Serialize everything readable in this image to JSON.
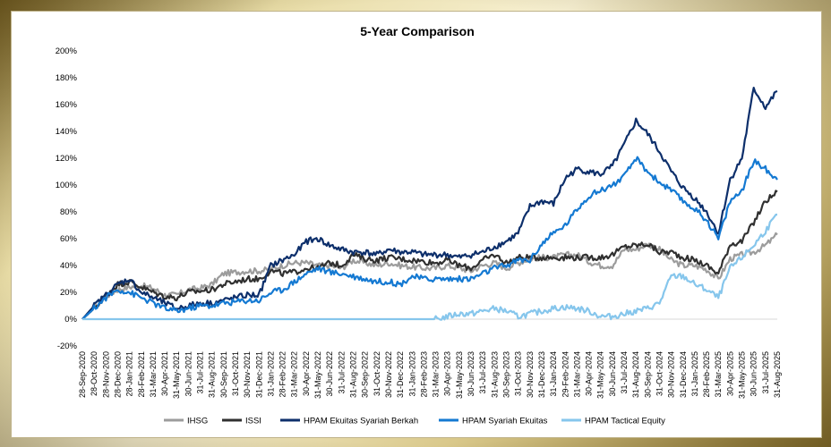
{
  "chart_data": {
    "type": "line",
    "title": "5-Year Comparison",
    "xlabel": "",
    "ylabel": "",
    "ylim": [
      -20,
      200
    ],
    "y_ticks": [
      "200%",
      "180%",
      "160%",
      "140%",
      "120%",
      "100%",
      "80%",
      "60%",
      "40%",
      "20%",
      "0%",
      "-20%"
    ],
    "x_tick_labels": [
      "28-Sep-2020",
      "28-Oct-2020",
      "28-Nov-2020",
      "28-Dec-2020",
      "28-Jan-2021",
      "28-Feb-2021",
      "31-Mar-2021",
      "30-Apr-2021",
      "31-May-2021",
      "30-Jun-2021",
      "31-Jul-2021",
      "31-Aug-2021",
      "30-Sep-2021",
      "31-Oct-2021",
      "30-Nov-2021",
      "31-Dec-2021",
      "31-Jan-2022",
      "28-Feb-2022",
      "31-Mar-2022",
      "30-Apr-2022",
      "31-May-2022",
      "30-Jun-2022",
      "31-Jul-2022",
      "31-Aug-2022",
      "30-Sep-2022",
      "31-Oct-2022",
      "30-Nov-2022",
      "31-Dec-2022",
      "31-Jan-2023",
      "28-Feb-2023",
      "31-Mar-2023",
      "30-Apr-2023",
      "31-May-2023",
      "30-Jun-2023",
      "31-Jul-2023",
      "31-Aug-2023",
      "30-Sep-2023",
      "31-Oct-2023",
      "30-Nov-2023",
      "31-Dec-2023",
      "31-Jan-2024",
      "29-Feb-2024",
      "31-Mar-2024",
      "30-Apr-2024",
      "31-May-2024",
      "30-Jun-2024",
      "31-Jul-2024",
      "31-Aug-2024",
      "30-Sep-2024",
      "31-Oct-2024",
      "30-Nov-2024",
      "31-Dec-2024",
      "31-Jan-2025",
      "28-Feb-2025",
      "31-Mar-2025",
      "30-Apr-2025",
      "31-May-2025",
      "30-Jun-2025",
      "31-Jul-2025",
      "31-Aug-2025"
    ],
    "legend_position": "bottom",
    "series": [
      {
        "name": "IHSG",
        "color": "#9c9c9c",
        "values": [
          0,
          8,
          17,
          22,
          24,
          25,
          23,
          18,
          18,
          22,
          23,
          26,
          34,
          35,
          36,
          36,
          37,
          40,
          42,
          42,
          40,
          40,
          38,
          44,
          42,
          40,
          42,
          40,
          39,
          38,
          38,
          40,
          38,
          36,
          40,
          42,
          38,
          42,
          45,
          46,
          46,
          48,
          48,
          43,
          40,
          40,
          52,
          52,
          56,
          52,
          44,
          40,
          40,
          37,
          30,
          45,
          48,
          50,
          55,
          63
        ]
      },
      {
        "name": "ISSI",
        "color": "#303030",
        "values": [
          0,
          8,
          18,
          26,
          28,
          24,
          20,
          17,
          16,
          20,
          21,
          22,
          26,
          28,
          30,
          30,
          36,
          34,
          35,
          38,
          38,
          42,
          40,
          48,
          45,
          44,
          46,
          45,
          44,
          43,
          42,
          44,
          40,
          38,
          44,
          48,
          42,
          46,
          46,
          46,
          46,
          46,
          46,
          46,
          46,
          48,
          54,
          55,
          56,
          50,
          50,
          46,
          44,
          40,
          34,
          56,
          58,
          72,
          88,
          95
        ]
      },
      {
        "name": "HPAM Ekuitas Syariah Berkah",
        "color": "#0d2f6b",
        "values": [
          0,
          10,
          18,
          26,
          30,
          20,
          16,
          12,
          8,
          10,
          12,
          12,
          14,
          16,
          18,
          18,
          40,
          44,
          48,
          58,
          60,
          55,
          52,
          50,
          50,
          48,
          52,
          50,
          50,
          48,
          48,
          48,
          46,
          48,
          50,
          54,
          58,
          64,
          84,
          88,
          86,
          105,
          112,
          110,
          108,
          114,
          130,
          148,
          138,
          125,
          110,
          98,
          90,
          80,
          64,
          104,
          120,
          172,
          158,
          170
        ]
      },
      {
        "name": "HPAM Syariah Ekuitas",
        "color": "#1479d2",
        "values": [
          0,
          8,
          16,
          22,
          20,
          16,
          12,
          8,
          6,
          8,
          10,
          10,
          12,
          13,
          14,
          14,
          20,
          22,
          28,
          34,
          38,
          35,
          34,
          32,
          30,
          28,
          28,
          26,
          32,
          30,
          30,
          30,
          30,
          30,
          34,
          38,
          40,
          44,
          44,
          56,
          64,
          70,
          82,
          92,
          96,
          100,
          106,
          120,
          110,
          102,
          96,
          88,
          82,
          74,
          60,
          88,
          96,
          118,
          112,
          104
        ]
      },
      {
        "name": "HPAM Tactical Equity",
        "color": "#86c6ec",
        "values": [
          0,
          0,
          0,
          0,
          0,
          0,
          0,
          0,
          0,
          0,
          0,
          0,
          0,
          0,
          0,
          0,
          0,
          0,
          0,
          0,
          0,
          0,
          0,
          0,
          0,
          0,
          0,
          0,
          0,
          0,
          0,
          2,
          4,
          4,
          6,
          8,
          6,
          2,
          4,
          6,
          8,
          9,
          8,
          6,
          2,
          2,
          4,
          6,
          8,
          12,
          32,
          32,
          26,
          22,
          16,
          38,
          46,
          55,
          66,
          78
        ]
      }
    ]
  }
}
